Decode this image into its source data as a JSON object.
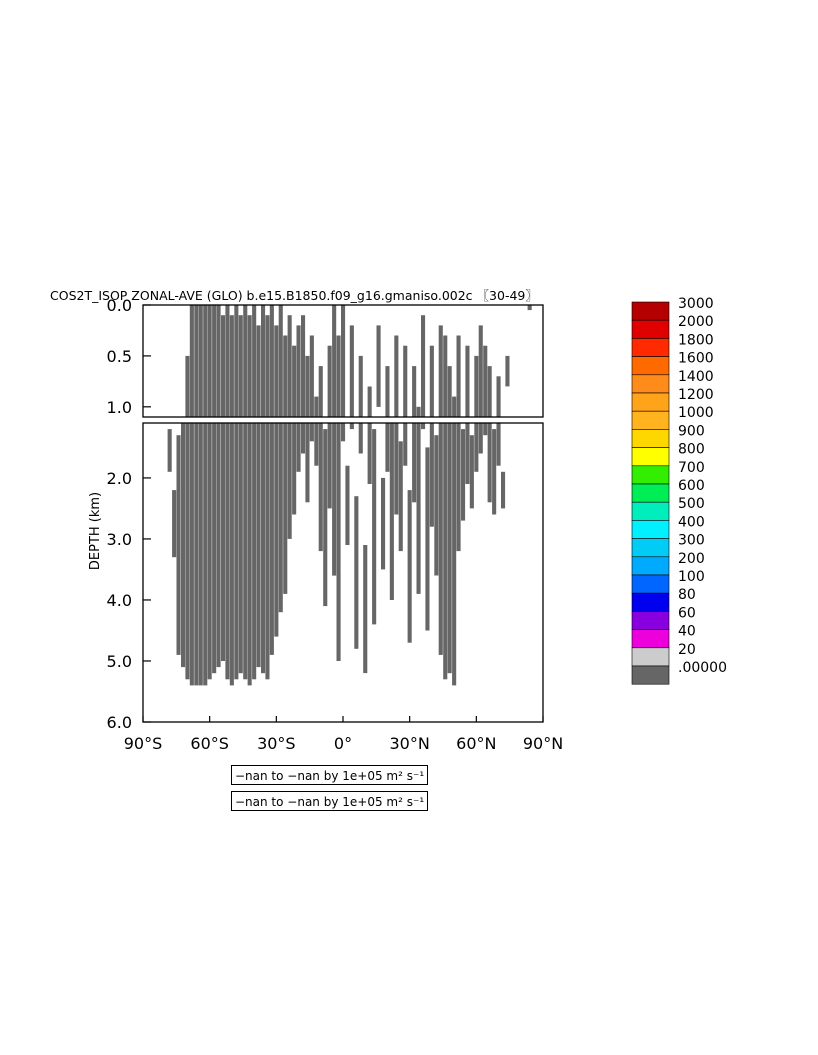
{
  "title": "COS2T_ISOP ZONAL-AVE (GLO) b.e15.B1850.f09_g16.gmaniso.002c 〖30-49〗",
  "info_lines": [
    "−nan to −nan by 1e+05 m² s⁻¹",
    "−nan to −nan by 1e+05 m² s⁻¹"
  ],
  "chart_data": {
    "type": "heatmap",
    "title": "COS2T_ISOP ZONAL-AVE (GLO) b.e15.B1850.f09_g16.gmaniso.002c 〖30-49〗",
    "xlabel": "",
    "ylabel": "DEPTH (km)",
    "xlim": [
      -90,
      90
    ],
    "upper_panel_ylim": [
      0.0,
      1.1
    ],
    "lower_panel_ylim": [
      1.1,
      6.0
    ],
    "x_ticks": [
      -90,
      -60,
      -30,
      0,
      30,
      60,
      90
    ],
    "x_tick_labels": [
      "90°S",
      "60°S",
      "30°S",
      "0°",
      "30°N",
      "60°N",
      "90°N"
    ],
    "upper_y_tick_labels": [
      "0.0",
      "0.5",
      "1.0"
    ],
    "upper_y_ticks": [
      0.0,
      0.5,
      1.0
    ],
    "lower_y_tick_labels": [
      "2.0",
      "3.0",
      "4.0",
      "5.0",
      "6.0"
    ],
    "lower_y_ticks": [
      2.0,
      3.0,
      4.0,
      5.0,
      6.0
    ],
    "units": "m² s⁻¹",
    "grid": false,
    "legend_position": "right",
    "colorbar": {
      "labels": [
        "3000",
        "2000",
        "1800",
        "1600",
        "1400",
        "1200",
        "1000",
        "900",
        "800",
        "700",
        "600",
        "500",
        "400",
        "300",
        "200",
        "100",
        "80",
        "60",
        "40",
        "20",
        ".00000"
      ],
      "colors": [
        "#b40000",
        "#e00000",
        "#ff2a00",
        "#ff6a00",
        "#ff8c1a",
        "#ffa31a",
        "#ffb41f",
        "#ffd700",
        "#ffff00",
        "#33ee00",
        "#00ee55",
        "#00eebb",
        "#00f0ff",
        "#00ccf5",
        "#00aaff",
        "#0066ff",
        "#0000ee",
        "#8800dd",
        "#ee00dd",
        "#cccccc",
        "#666666"
      ]
    },
    "fill_color": "#666666",
    "filled_value_range": [
      0,
      20
    ],
    "filled_columns": [
      [
        -78,
        1.2,
        1.9
      ],
      [
        -76,
        2.2,
        3.3
      ],
      [
        -74,
        1.3,
        4.9
      ],
      [
        -72,
        1.1,
        5.1
      ],
      [
        -70,
        0.5,
        5.3
      ],
      [
        -68,
        0.0,
        5.4
      ],
      [
        -66,
        0.0,
        5.4
      ],
      [
        -64,
        0.0,
        5.4
      ],
      [
        -62,
        0.0,
        5.4
      ],
      [
        -60,
        0.0,
        5.3
      ],
      [
        -58,
        0.0,
        5.2
      ],
      [
        -56,
        0.0,
        5.1
      ],
      [
        -54,
        0.1,
        5.0
      ],
      [
        -52,
        0.0,
        5.3
      ],
      [
        -50,
        0.1,
        5.4
      ],
      [
        -48,
        0.0,
        5.3
      ],
      [
        -46,
        0.1,
        5.2
      ],
      [
        -44,
        0.0,
        5.3
      ],
      [
        -42,
        0.1,
        5.4
      ],
      [
        -40,
        0.0,
        5.3
      ],
      [
        -38,
        0.2,
        5.1
      ],
      [
        -36,
        0.0,
        5.2
      ],
      [
        -34,
        0.1,
        5.3
      ],
      [
        -32,
        0.0,
        4.9
      ],
      [
        -30,
        0.2,
        4.6
      ],
      [
        -28,
        0.0,
        4.2
      ],
      [
        -26,
        0.3,
        3.9
      ],
      [
        -24,
        0.1,
        3.0
      ],
      [
        -22,
        0.4,
        2.6
      ],
      [
        -20,
        0.2,
        1.9
      ],
      [
        -18,
        0.1,
        1.6
      ],
      [
        -16,
        0.5,
        2.4
      ],
      [
        -14,
        0.3,
        1.4
      ],
      [
        -12,
        0.9,
        1.8
      ],
      [
        -10,
        0.6,
        3.2
      ],
      [
        -8,
        1.2,
        4.1
      ],
      [
        -6,
        0.4,
        2.5
      ],
      [
        -4,
        0.0,
        3.6
      ],
      [
        -2,
        0.3,
        5.0
      ],
      [
        0,
        0.0,
        1.4
      ],
      [
        2,
        1.8,
        3.1
      ],
      [
        4,
        0.2,
        1.2
      ],
      [
        6,
        2.3,
        4.8
      ],
      [
        8,
        0.5,
        1.6
      ],
      [
        10,
        3.1,
        5.2
      ],
      [
        12,
        0.8,
        2.1
      ],
      [
        14,
        1.2,
        4.4
      ],
      [
        16,
        0.2,
        1.0
      ],
      [
        18,
        2.0,
        3.5
      ],
      [
        20,
        0.6,
        1.9
      ],
      [
        22,
        1.1,
        4.0
      ],
      [
        24,
        0.3,
        2.6
      ],
      [
        26,
        1.4,
        3.2
      ],
      [
        28,
        0.4,
        1.8
      ],
      [
        30,
        2.2,
        4.7
      ],
      [
        32,
        0.6,
        2.4
      ],
      [
        34,
        1.0,
        3.9
      ],
      [
        36,
        0.1,
        1.2
      ],
      [
        38,
        1.5,
        4.5
      ],
      [
        40,
        0.4,
        2.8
      ],
      [
        42,
        1.3,
        3.6
      ],
      [
        44,
        0.2,
        4.9
      ],
      [
        46,
        0.3,
        5.3
      ],
      [
        48,
        0.6,
        5.2
      ],
      [
        50,
        0.9,
        5.4
      ],
      [
        52,
        0.3,
        3.2
      ],
      [
        54,
        1.2,
        2.7
      ],
      [
        56,
        0.4,
        2.1
      ],
      [
        58,
        1.3,
        2.5
      ],
      [
        60,
        0.5,
        1.9
      ],
      [
        62,
        0.2,
        1.6
      ],
      [
        64,
        0.4,
        1.3
      ],
      [
        66,
        0.6,
        2.4
      ],
      [
        68,
        1.2,
        2.6
      ],
      [
        70,
        0.7,
        1.8
      ],
      [
        72,
        1.9,
        2.5
      ],
      [
        74,
        0.5,
        0.8
      ],
      [
        84,
        0.0,
        0.05
      ]
    ]
  }
}
